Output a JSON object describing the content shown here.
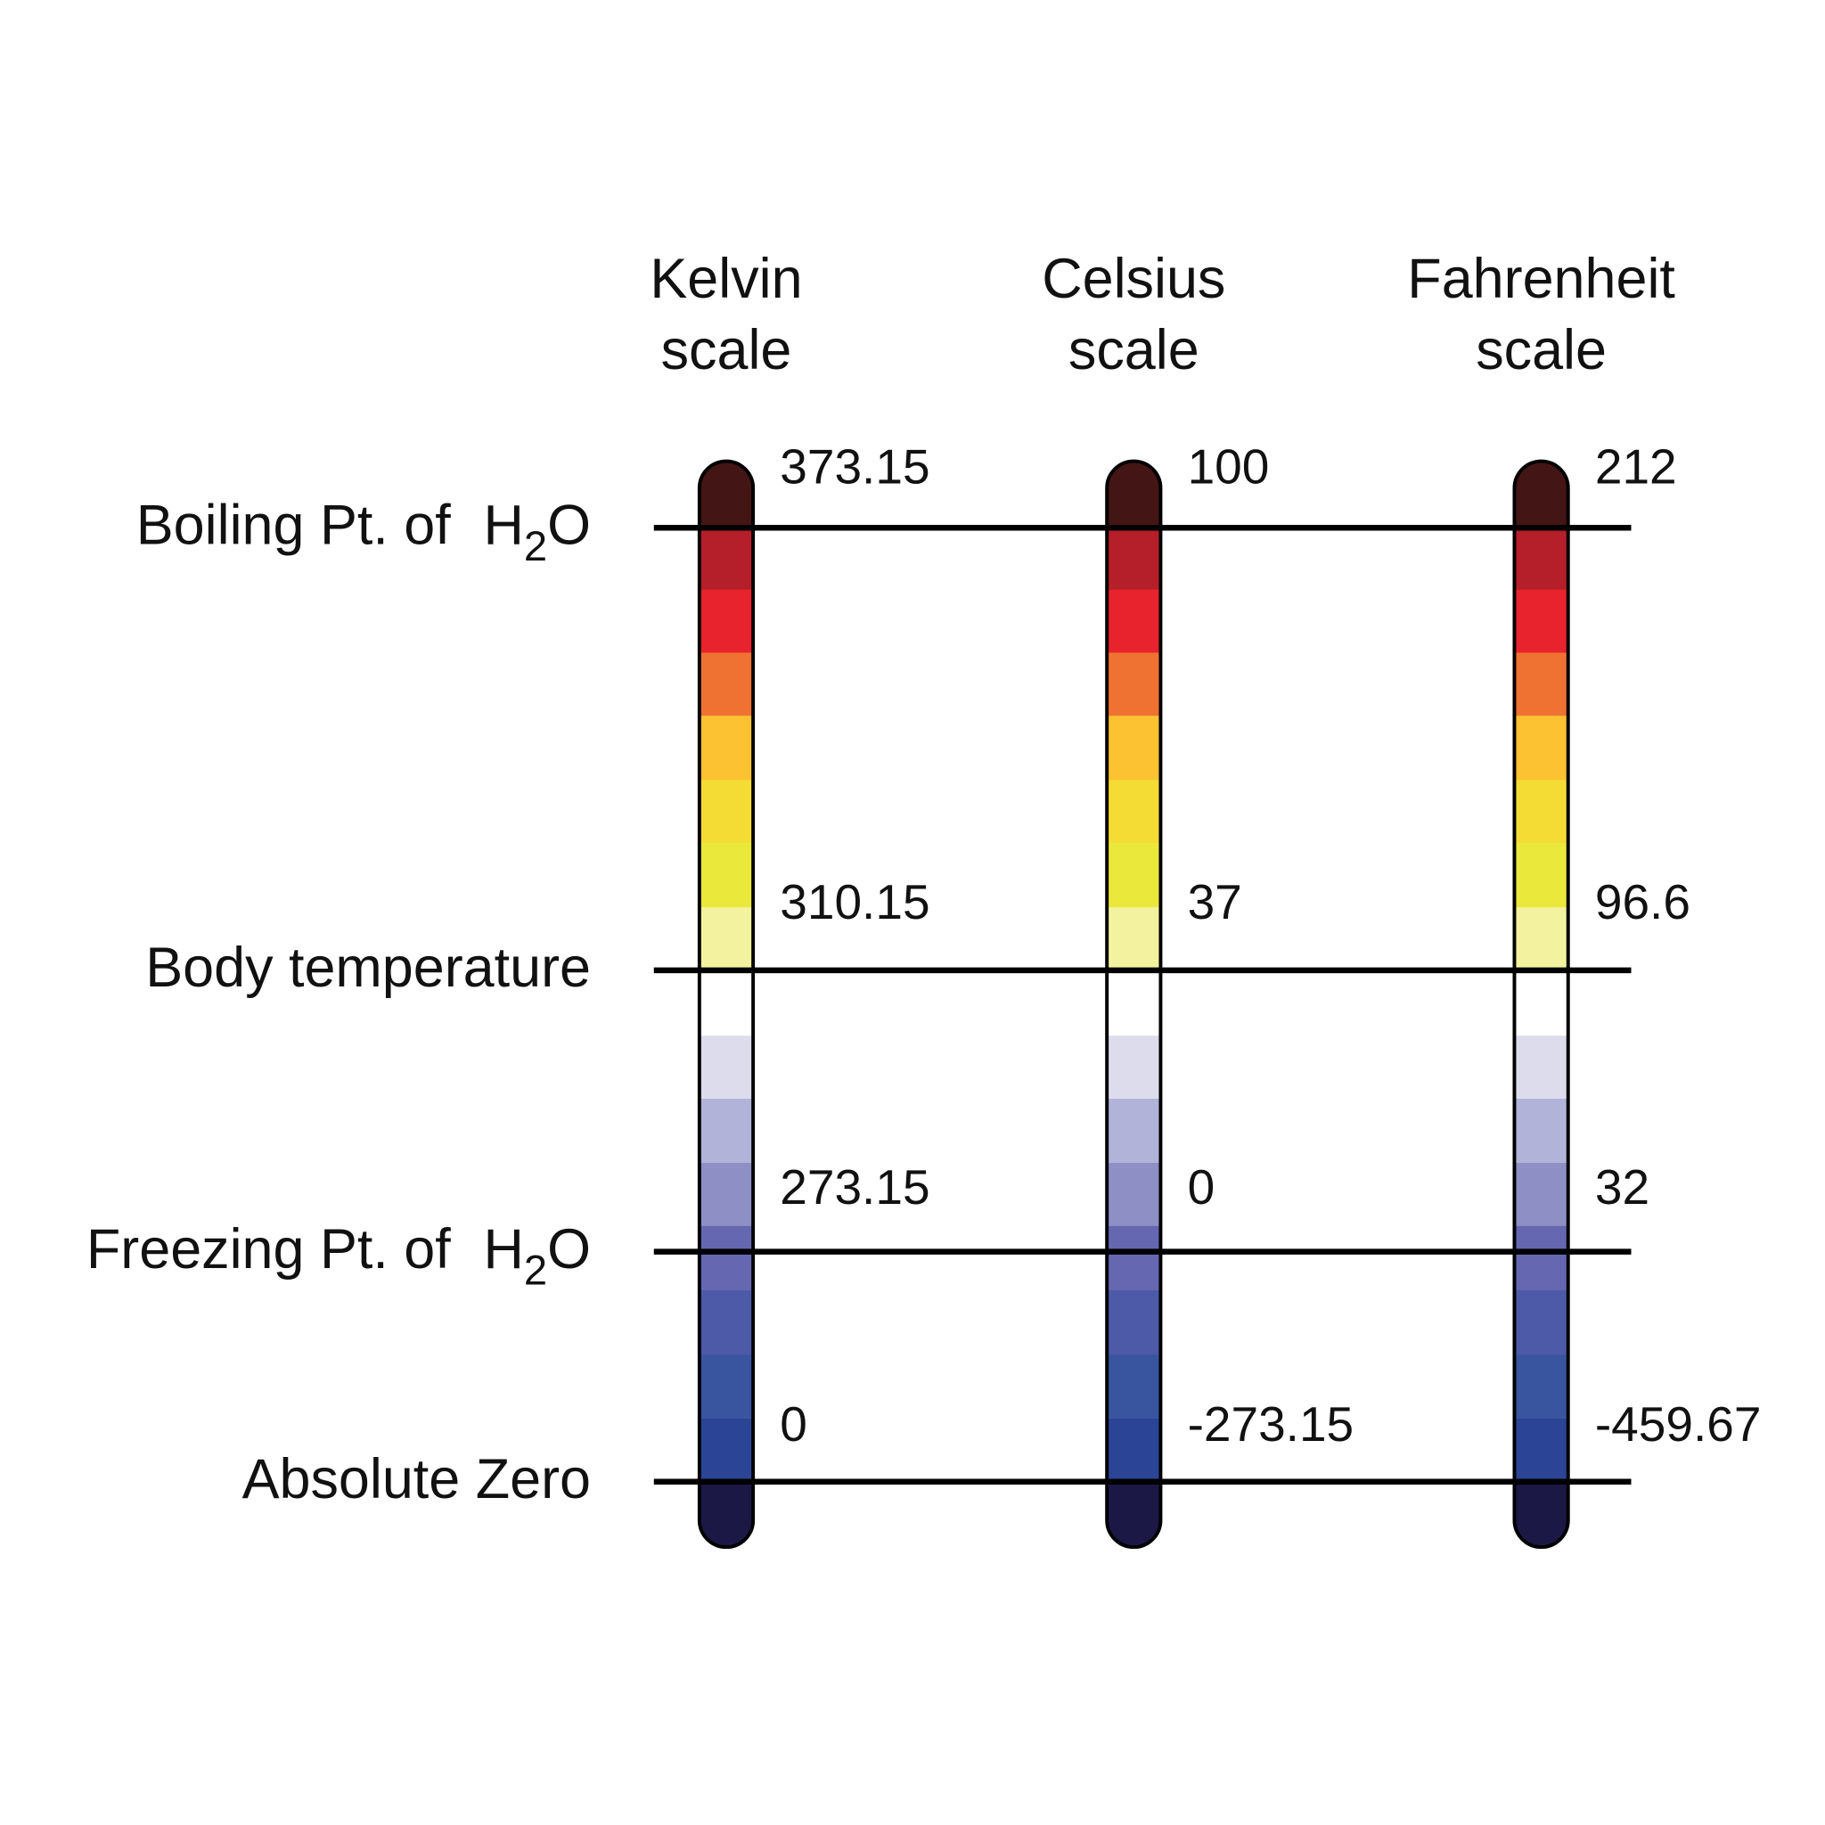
{
  "columns": [
    {
      "name": "Kelvin",
      "subtitle": "scale"
    },
    {
      "name": "Celsius",
      "subtitle": "scale"
    },
    {
      "name": "Fahrenheit",
      "subtitle": "scale"
    }
  ],
  "rows": [
    {
      "label": "Boiling Pt. of",
      "formula": {
        "base": "H",
        "sub": "2",
        "tail": "O"
      },
      "values": [
        "373.15",
        "100",
        "212"
      ]
    },
    {
      "label": "Body temperature",
      "values": [
        "310.15",
        "37",
        "96.6"
      ]
    },
    {
      "label": "Freezing Pt. of",
      "formula": {
        "base": "H",
        "sub": "2",
        "tail": "O"
      },
      "values": [
        "273.15",
        "0",
        "32"
      ]
    },
    {
      "label": "Absolute Zero",
      "values": [
        "0",
        "-273.15",
        "-459.67"
      ]
    }
  ]
}
